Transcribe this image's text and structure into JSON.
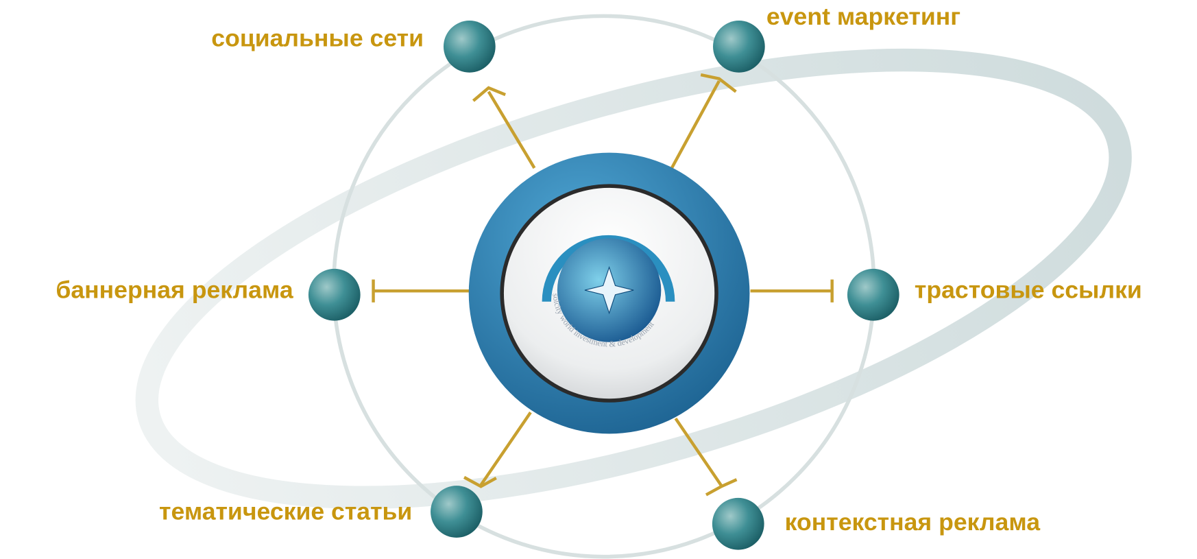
{
  "center": {
    "logo_text": "solcity world investment & development"
  },
  "nodes": [
    {
      "label": "социальные сети"
    },
    {
      "label": "event маркетинг"
    },
    {
      "label": "баннерная реклама"
    },
    {
      "label": "трастовые ссылки"
    },
    {
      "label": "тематические статьи"
    },
    {
      "label": "контекстная реклама"
    }
  ]
}
